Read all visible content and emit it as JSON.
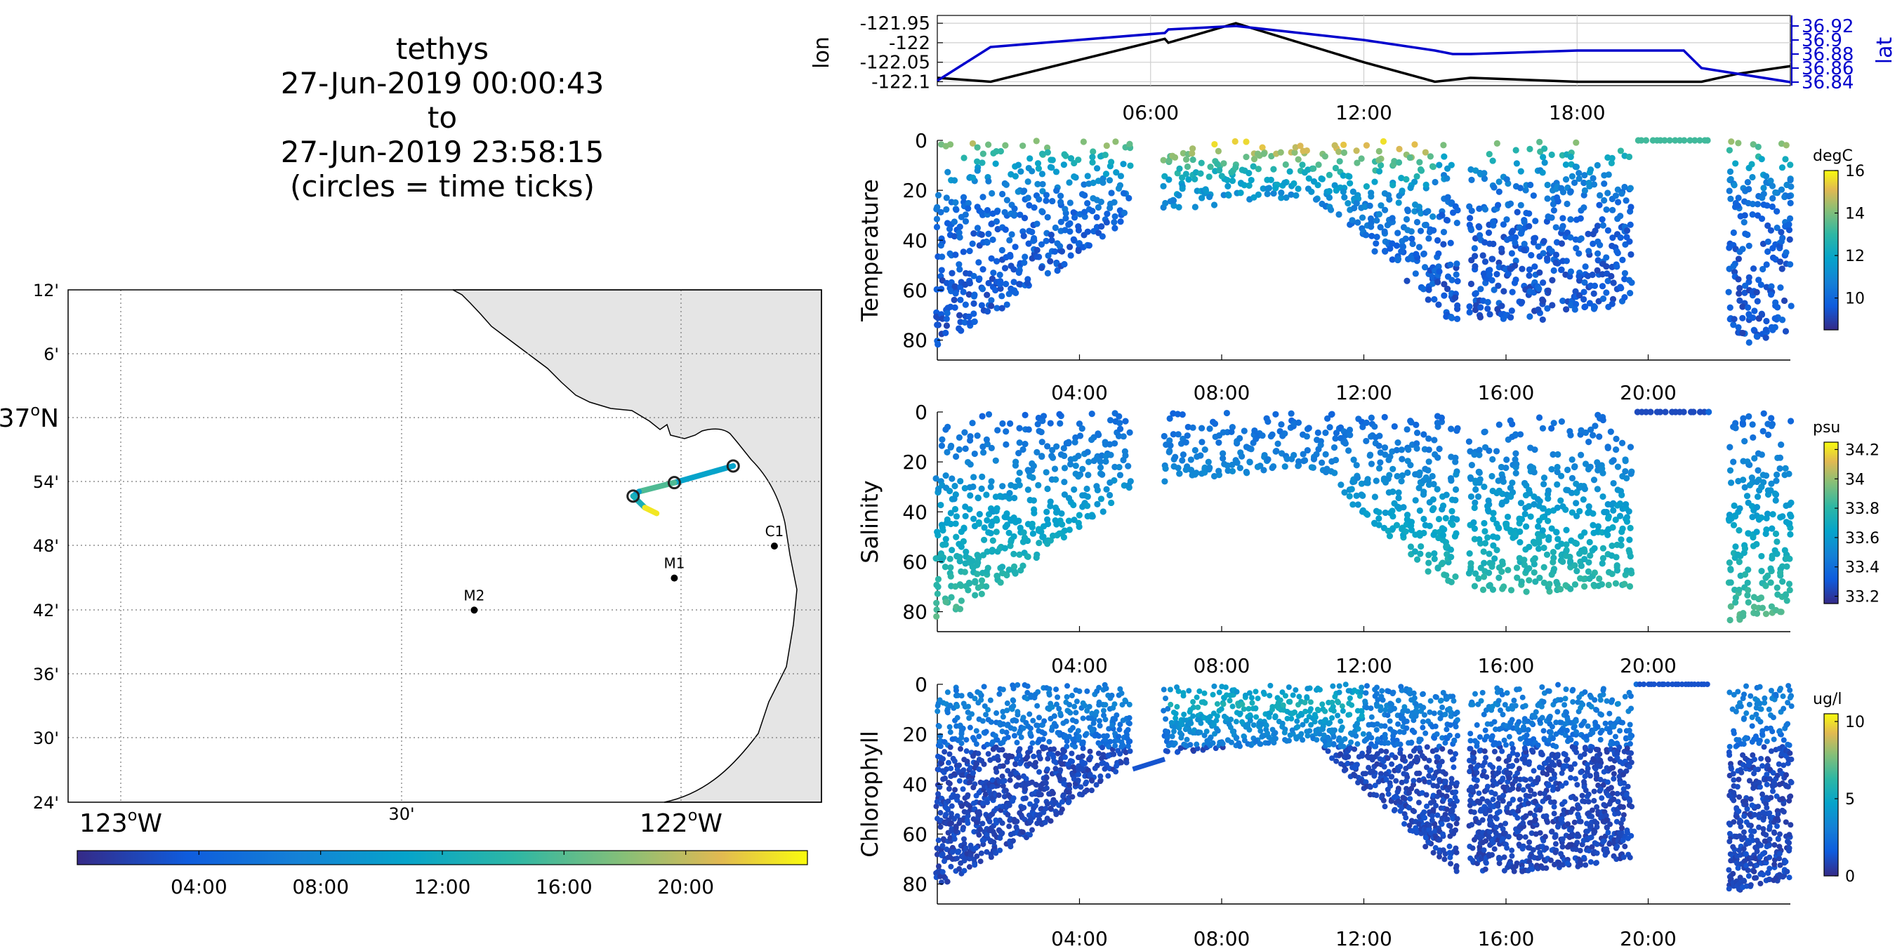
{
  "header": {
    "vehicle": "tethys",
    "start_time": "27-Jun-2019 00:00:43",
    "to_word": "to",
    "end_time": "27-Jun-2019 23:58:15",
    "note": "(circles = time ticks)"
  },
  "colors": {
    "lat_axis": "#0000cc",
    "lon_line": "#000000",
    "land": "#e5e5e5",
    "station": "#000000"
  },
  "chart_data": [
    {
      "type": "map",
      "name": "track-map",
      "lat_ticks": [
        "12'",
        "6'",
        "37°N",
        "54'",
        "48'",
        "42'",
        "36'",
        "30'",
        "24'"
      ],
      "lon_ticks": [
        "123°W",
        "30'",
        "122°W"
      ],
      "stations": [
        {
          "label": "M2",
          "lon": -122.39,
          "lat": 36.7
        },
        {
          "label": "M1",
          "lon": -122.05,
          "lat": 36.75
        },
        {
          "label": "C1",
          "lon": -121.88,
          "lat": 36.8
        }
      ],
      "track": [
        {
          "lon": -121.95,
          "lat": 36.925,
          "hour": 8.4
        },
        {
          "lon": -122.05,
          "lat": 36.899,
          "hour": 12
        },
        {
          "lon": -122.11,
          "lat": 36.885,
          "hour": 18
        },
        {
          "lon": -122.12,
          "lat": 36.878,
          "hour": 2
        },
        {
          "lon": -122.1,
          "lat": 36.86,
          "hour": 22
        },
        {
          "lon": -122.08,
          "lat": 36.851,
          "hour": 23.9
        }
      ],
      "time_colorbar": {
        "ticks": [
          "04:00",
          "08:00",
          "12:00",
          "16:00",
          "20:00"
        ],
        "hours": [
          4,
          8,
          12,
          16,
          20
        ],
        "range": [
          0,
          24
        ]
      }
    },
    {
      "type": "line",
      "name": "position-series",
      "left_label": "lon",
      "right_label": "lat",
      "left_ticks": [
        "-121.95",
        "-122",
        "-122.05",
        "-122.1"
      ],
      "left_tick_values": [
        -121.95,
        -122.0,
        -122.05,
        -122.1
      ],
      "left_range": [
        -122.11,
        -121.93
      ],
      "right_ticks": [
        "36.92",
        "36.9",
        "36.88",
        "36.86",
        "36.84"
      ],
      "right_tick_values": [
        36.92,
        36.9,
        36.88,
        36.86,
        36.84
      ],
      "right_range": [
        36.835,
        36.935
      ],
      "x_ticks": [
        "06:00",
        "12:00",
        "18:00"
      ],
      "x_tick_hours": [
        6,
        12,
        18
      ],
      "series": [
        {
          "axis": "left",
          "hours": [
            0,
            1.5,
            6.4,
            6.5,
            8.4,
            12,
            14,
            15,
            18,
            21.5,
            22.5,
            24
          ],
          "values": [
            -122.09,
            -122.1,
            -121.99,
            -122.0,
            -121.95,
            -122.05,
            -122.1,
            -122.09,
            -122.1,
            -122.1,
            -122.08,
            -122.06
          ]
        },
        {
          "axis": "right",
          "hours": [
            0,
            1.5,
            6.4,
            6.5,
            8.4,
            12,
            14,
            14.5,
            15,
            18,
            21,
            21.5,
            24
          ],
          "values": [
            36.842,
            36.89,
            36.91,
            36.915,
            36.92,
            36.9,
            36.885,
            36.88,
            36.88,
            36.885,
            36.885,
            36.86,
            36.84
          ]
        }
      ]
    },
    {
      "type": "scatter",
      "name": "temperature-section",
      "ylabel": "Temperature",
      "unit": "degC",
      "y_ticks": [
        "0",
        "20",
        "40",
        "60",
        "80"
      ],
      "y_tick_values": [
        0,
        20,
        40,
        60,
        80
      ],
      "y_range": [
        0,
        88
      ],
      "x_ticks": [
        "04:00",
        "08:00",
        "12:00",
        "16:00",
        "20:00"
      ],
      "x_tick_hours": [
        4,
        8,
        12,
        16,
        20
      ],
      "cbar_ticks": [
        "10",
        "12",
        "14",
        "16"
      ],
      "cbar_tick_values": [
        10,
        12,
        14,
        16
      ],
      "cbar_range": [
        8.5,
        16
      ],
      "profiles": [
        {
          "start": 0,
          "end": 5.4,
          "max_depth": [
            82,
            60,
            32
          ]
        },
        {
          "start": 6.4,
          "end": 14.6,
          "max_depth": [
            28,
            22,
            74
          ]
        },
        {
          "start": 15.0,
          "end": 19.5,
          "max_depth": [
            72,
            72,
            65
          ]
        },
        {
          "start": 19.7,
          "end": 21.7,
          "max_depth": [
            1,
            1,
            1
          ]
        },
        {
          "start": 22.3,
          "end": 24,
          "max_depth": [
            84,
            80,
            76
          ]
        }
      ]
    },
    {
      "type": "scatter",
      "name": "salinity-section",
      "ylabel": "Salinity",
      "unit": "psu",
      "y_ticks": [
        "0",
        "20",
        "40",
        "60",
        "80"
      ],
      "y_tick_values": [
        0,
        20,
        40,
        60,
        80
      ],
      "y_range": [
        0,
        88
      ],
      "x_ticks": [
        "04:00",
        "08:00",
        "12:00",
        "16:00",
        "20:00"
      ],
      "x_tick_hours": [
        4,
        8,
        12,
        16,
        20
      ],
      "cbar_ticks": [
        "33.2",
        "33.4",
        "33.6",
        "33.8",
        "34",
        "34.2"
      ],
      "cbar_tick_values": [
        33.2,
        33.4,
        33.6,
        33.8,
        34.0,
        34.2
      ],
      "cbar_range": [
        33.15,
        34.25
      ],
      "profiles": [
        {
          "start": 0,
          "end": 5.4,
          "max_depth": [
            85,
            60,
            32
          ]
        },
        {
          "start": 6.4,
          "end": 14.6,
          "max_depth": [
            28,
            22,
            74
          ]
        },
        {
          "start": 15.0,
          "end": 19.5,
          "max_depth": [
            72,
            72,
            70
          ]
        },
        {
          "start": 19.7,
          "end": 21.7,
          "max_depth": [
            1,
            1,
            1
          ]
        },
        {
          "start": 22.3,
          "end": 24,
          "max_depth": [
            84,
            82,
            80
          ]
        }
      ]
    },
    {
      "type": "scatter",
      "name": "chlorophyll-section",
      "ylabel": "Chlorophyll",
      "unit": "ug/l",
      "y_ticks": [
        "0",
        "20",
        "40",
        "60",
        "80"
      ],
      "y_tick_values": [
        0,
        20,
        40,
        60,
        80
      ],
      "y_range": [
        0,
        88
      ],
      "x_ticks": [
        "04:00",
        "08:00",
        "12:00",
        "16:00",
        "20:00"
      ],
      "x_tick_hours": [
        4,
        8,
        12,
        16,
        20
      ],
      "cbar_ticks": [
        "0",
        "5",
        "10"
      ],
      "cbar_tick_values": [
        0,
        5,
        10
      ],
      "cbar_range": [
        0,
        10.5
      ],
      "profiles": [
        {
          "start": 0,
          "end": 5.4,
          "max_depth": [
            82,
            60,
            32
          ]
        },
        {
          "start": 6.4,
          "end": 14.6,
          "max_depth": [
            28,
            22,
            76
          ]
        },
        {
          "start": 15.0,
          "end": 19.5,
          "max_depth": [
            75,
            75,
            70
          ]
        },
        {
          "start": 19.7,
          "end": 21.7,
          "max_depth": [
            1,
            1,
            1
          ]
        },
        {
          "start": 22.3,
          "end": 24,
          "max_depth": [
            84,
            80,
            78
          ]
        }
      ]
    }
  ]
}
